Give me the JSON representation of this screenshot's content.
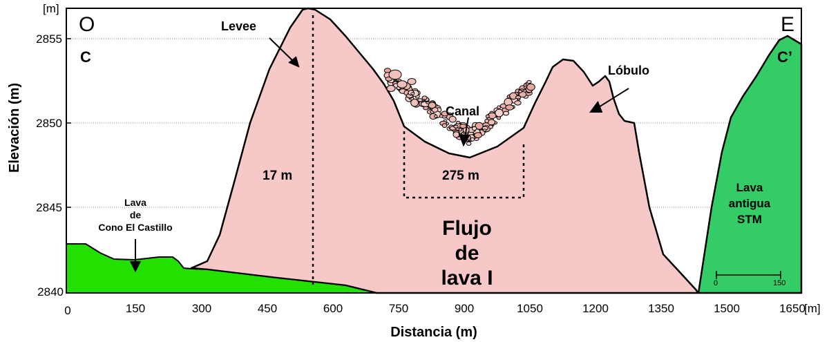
{
  "figure": {
    "axes": {
      "x_label": "Distancia (m)",
      "y_label": "Elevación (m)",
      "x_unit": "[m]",
      "y_unit": "[m]",
      "x_ticks": [
        "0",
        "150",
        "300",
        "450",
        "600",
        "750",
        "900",
        "1050",
        "1200",
        "1350",
        "1500",
        "1650"
      ],
      "y_ticks": [
        "2855",
        "2850",
        "2845",
        "2840"
      ],
      "gridlines": "horizontal dotted"
    },
    "orientation": {
      "west": "O",
      "east": "E"
    },
    "section": {
      "start": "C",
      "end": "C’"
    },
    "labels": {
      "levee": "Levee",
      "lobulo": "Lóbulo",
      "canal": "Canal",
      "height": "17 m",
      "width": "275 m",
      "flow_line1": "Flujo",
      "flow_line2": "de",
      "flow_line3": "lava I",
      "castillo_line1": "Lava",
      "castillo_line2": "de",
      "castillo_line3": "Cono El Castillo",
      "stm_line1": "Lava",
      "stm_line2": "antigua",
      "stm_line3": "STM"
    },
    "scale_bar": {
      "start": "0",
      "end": "150"
    },
    "colors": {
      "lava_flow": "#F7C8C8",
      "castillo_lava": "#22E000",
      "stm_lava": "#33CC66",
      "outline": "#000000"
    }
  }
}
